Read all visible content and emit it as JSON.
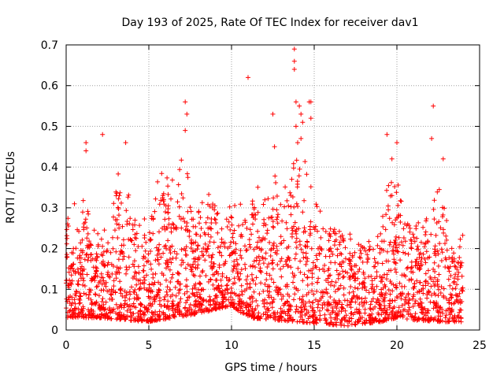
{
  "chart_data": {
    "type": "scatter",
    "title": "Day 193 of 2025, Rate Of TEC Index for receiver dav1",
    "xlabel": "GPS time / hours",
    "ylabel": "ROTI / TECUs",
    "xlim": [
      0,
      25
    ],
    "ylim": [
      0,
      0.7
    ],
    "xticks": [
      0,
      5,
      10,
      15,
      20,
      25
    ],
    "yticks": [
      0,
      0.1,
      0.2,
      0.3,
      0.4,
      0.5,
      0.6,
      0.7
    ],
    "xtick_labels": [
      "0",
      "5",
      "10",
      "15",
      "20",
      "25"
    ],
    "ytick_labels": [
      "0",
      "0.1",
      "0.2",
      "0.3",
      "0.4",
      "0.5",
      "0.6",
      "0.7"
    ],
    "grid": true,
    "marker": "+",
    "color": "#ff0000",
    "envelope": [
      [
        0.0,
        0.3
      ],
      [
        0.5,
        0.2
      ],
      [
        1.0,
        0.33
      ],
      [
        1.5,
        0.26
      ],
      [
        2.0,
        0.22
      ],
      [
        2.5,
        0.24
      ],
      [
        3.0,
        0.38
      ],
      [
        3.5,
        0.32
      ],
      [
        4.0,
        0.3
      ],
      [
        4.5,
        0.26
      ],
      [
        5.0,
        0.26
      ],
      [
        5.5,
        0.36
      ],
      [
        6.0,
        0.38
      ],
      [
        6.5,
        0.32
      ],
      [
        7.0,
        0.44
      ],
      [
        7.5,
        0.33
      ],
      [
        8.0,
        0.3
      ],
      [
        8.5,
        0.32
      ],
      [
        9.0,
        0.3
      ],
      [
        9.5,
        0.28
      ],
      [
        10.0,
        0.32
      ],
      [
        10.5,
        0.28
      ],
      [
        11.0,
        0.24
      ],
      [
        11.5,
        0.36
      ],
      [
        12.0,
        0.3
      ],
      [
        12.5,
        0.34
      ],
      [
        13.0,
        0.36
      ],
      [
        13.5,
        0.38
      ],
      [
        14.0,
        0.44
      ],
      [
        14.5,
        0.36
      ],
      [
        15.0,
        0.32
      ],
      [
        15.5,
        0.26
      ],
      [
        16.0,
        0.24
      ],
      [
        16.5,
        0.26
      ],
      [
        17.0,
        0.22
      ],
      [
        17.5,
        0.2
      ],
      [
        18.0,
        0.24
      ],
      [
        18.5,
        0.22
      ],
      [
        19.0,
        0.22
      ],
      [
        19.5,
        0.36
      ],
      [
        20.0,
        0.34
      ],
      [
        20.5,
        0.3
      ],
      [
        21.0,
        0.26
      ],
      [
        21.5,
        0.24
      ],
      [
        22.0,
        0.26
      ],
      [
        22.5,
        0.36
      ],
      [
        23.0,
        0.3
      ],
      [
        23.5,
        0.22
      ],
      [
        24.0,
        0.22
      ]
    ],
    "baseline": [
      [
        0.0,
        0.03
      ],
      [
        2.0,
        0.03
      ],
      [
        5.0,
        0.02
      ],
      [
        8.0,
        0.04
      ],
      [
        10.0,
        0.06
      ],
      [
        11.0,
        0.03
      ],
      [
        14.0,
        0.02
      ],
      [
        17.0,
        0.01
      ],
      [
        19.0,
        0.02
      ],
      [
        20.0,
        0.03
      ],
      [
        22.0,
        0.02
      ],
      [
        24.0,
        0.02
      ]
    ],
    "outliers": [
      {
        "x": 0.5,
        "y": 0.31
      },
      {
        "x": 1.2,
        "y": 0.46
      },
      {
        "x": 1.2,
        "y": 0.44
      },
      {
        "x": 2.2,
        "y": 0.48
      },
      {
        "x": 3.6,
        "y": 0.46
      },
      {
        "x": 7.2,
        "y": 0.56
      },
      {
        "x": 7.3,
        "y": 0.53
      },
      {
        "x": 7.2,
        "y": 0.49
      },
      {
        "x": 11.0,
        "y": 0.62
      },
      {
        "x": 12.5,
        "y": 0.53
      },
      {
        "x": 12.6,
        "y": 0.45
      },
      {
        "x": 13.8,
        "y": 0.69
      },
      {
        "x": 13.8,
        "y": 0.66
      },
      {
        "x": 13.8,
        "y": 0.64
      },
      {
        "x": 13.9,
        "y": 0.56
      },
      {
        "x": 14.1,
        "y": 0.55
      },
      {
        "x": 14.2,
        "y": 0.53
      },
      {
        "x": 14.3,
        "y": 0.51
      },
      {
        "x": 13.9,
        "y": 0.5
      },
      {
        "x": 14.7,
        "y": 0.56
      },
      {
        "x": 14.8,
        "y": 0.56
      },
      {
        "x": 14.8,
        "y": 0.52
      },
      {
        "x": 14.2,
        "y": 0.47
      },
      {
        "x": 14.0,
        "y": 0.46
      },
      {
        "x": 19.4,
        "y": 0.48
      },
      {
        "x": 20.0,
        "y": 0.46
      },
      {
        "x": 22.2,
        "y": 0.55
      },
      {
        "x": 22.1,
        "y": 0.47
      },
      {
        "x": 22.8,
        "y": 0.42
      },
      {
        "x": 19.7,
        "y": 0.42
      }
    ]
  }
}
